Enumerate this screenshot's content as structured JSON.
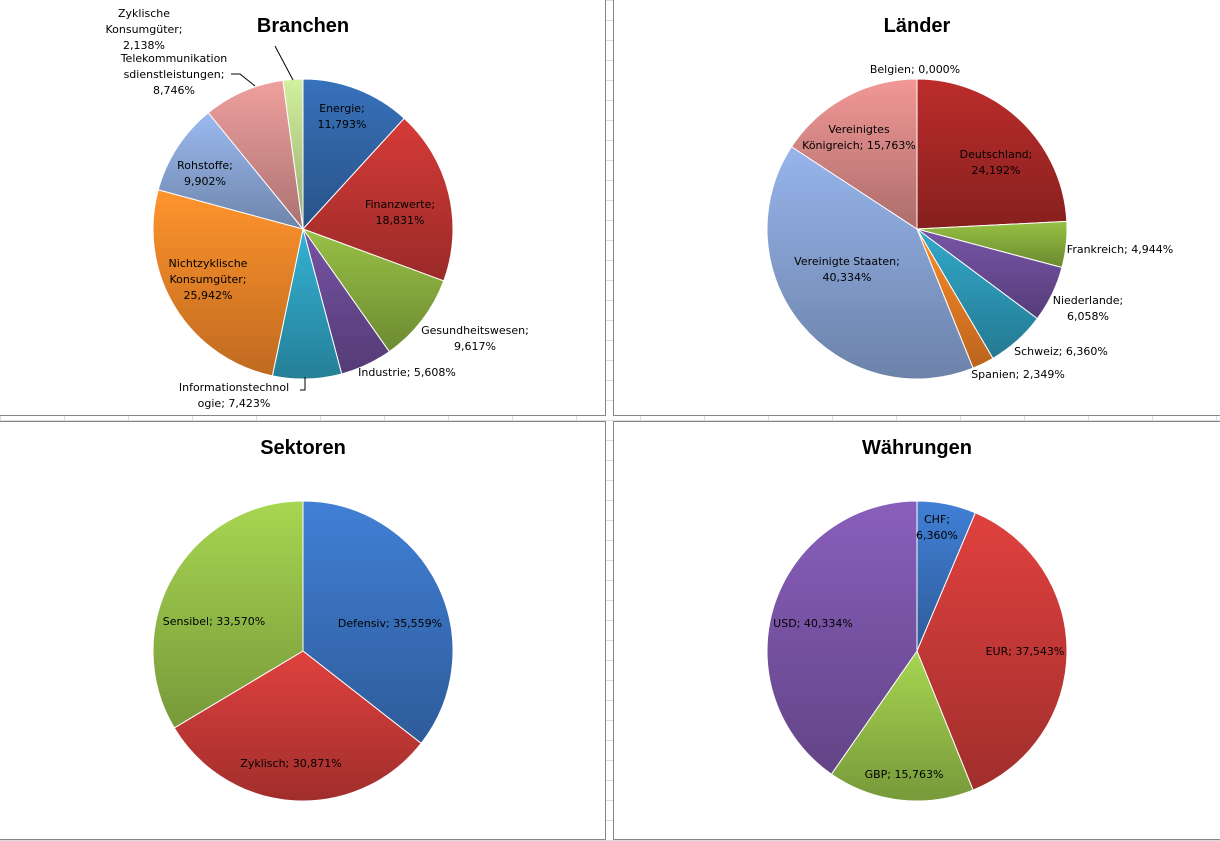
{
  "chart_data": [
    {
      "type": "pie",
      "title": "Branchen",
      "slices": [
        {
          "label": "Energie",
          "value": 11.793,
          "text": [
            "Energie;",
            "11,793%"
          ],
          "color": "#3266a8"
        },
        {
          "label": "Finanzwerte",
          "value": 18.831,
          "text": [
            "Finanzwerte;",
            "18,831%"
          ],
          "color": "#bf3532"
        },
        {
          "label": "Gesundheitswesen",
          "value": 9.617,
          "text": [
            "Gesundheitswesen;",
            "9,617%"
          ],
          "color": "#88ac3e"
        },
        {
          "label": "Industrie",
          "value": 5.608,
          "text": [
            "Industrie; 5,608%"
          ],
          "color": "#694a93"
        },
        {
          "label": "Informationstechnologie",
          "value": 7.423,
          "text": [
            "Informationstechnol",
            "ogie; 7,423%"
          ],
          "color": "#2e9fbd"
        },
        {
          "label": "Nichtzyklische Konsumgüter",
          "value": 25.942,
          "text": [
            "Nichtzyklische",
            "Konsumgüter;",
            "25,942%"
          ],
          "color": "#ef8428"
        },
        {
          "label": "Rohstoffe",
          "value": 9.902,
          "text": [
            "Rohstoffe;",
            "9,902%"
          ],
          "color": "#8aa6d6"
        },
        {
          "label": "Telekommunikationsdienstleistungen",
          "value": 8.746,
          "text": [
            "Telekommunikation",
            "sdienstleistungen;",
            "8,746%"
          ],
          "color": "#d58f8d"
        },
        {
          "label": "Zyklische Konsumgüter",
          "value": 2.138,
          "text": [
            "Zyklische",
            "Konsumgüter;",
            "2,138%"
          ],
          "color": "#bcd68e"
        }
      ]
    },
    {
      "type": "pie",
      "title": "Länder",
      "slices": [
        {
          "label": "Deutschland",
          "value": 24.192,
          "text": [
            "Deutschland;",
            "24,192%"
          ],
          "color": "#a82826"
        },
        {
          "label": "Frankreich",
          "value": 4.944,
          "text": [
            "Frankreich; 4,944%"
          ],
          "color": "#86ab3c"
        },
        {
          "label": "Niederlande",
          "value": 6.058,
          "text": [
            "Niederlande;",
            "6,058%"
          ],
          "color": "#6a4c96"
        },
        {
          "label": "Schweiz",
          "value": 6.36,
          "text": [
            "Schweiz; 6,360%"
          ],
          "color": "#2d97b5"
        },
        {
          "label": "Spanien",
          "value": 2.349,
          "text": [
            "Spanien; 2,349%"
          ],
          "color": "#e87d25"
        },
        {
          "label": "Vereinigte Staaten",
          "value": 40.334,
          "text": [
            "Vereinigte Staaten;",
            "40,334%"
          ],
          "color": "#87a2d3"
        },
        {
          "label": "Vereinigtes Königreich",
          "value": 15.763,
          "text": [
            "Vereinigtes",
            "Königreich; 15,763%"
          ],
          "color": "#d78886"
        },
        {
          "label": "Belgien",
          "value": 0.0,
          "text": [
            "Belgien; 0,000%"
          ],
          "color": "#b9cde8"
        }
      ]
    },
    {
      "type": "pie",
      "title": "Sektoren",
      "slices": [
        {
          "label": "Defensiv",
          "value": 35.559,
          "text": [
            "Defensiv; 35,559%"
          ],
          "color": "#3a72bf"
        },
        {
          "label": "Zyklisch",
          "value": 30.871,
          "text": [
            "Zyklisch; 30,871%"
          ],
          "color": "#c83a37"
        },
        {
          "label": "Sensibel",
          "value": 33.57,
          "text": [
            "Sensibel; 33,570%"
          ],
          "color": "#95bf48"
        }
      ]
    },
    {
      "type": "pie",
      "title": "Währungen",
      "slices": [
        {
          "label": "CHF",
          "value": 6.36,
          "text": [
            "CHF;",
            "6,360%"
          ],
          "color": "#3a72bf"
        },
        {
          "label": "EUR",
          "value": 37.543,
          "text": [
            "EUR; 37,543%"
          ],
          "color": "#c83a37"
        },
        {
          "label": "GBP",
          "value": 15.763,
          "text": [
            "GBP; 15,763%"
          ],
          "color": "#95bf48"
        },
        {
          "label": "USD",
          "value": 40.334,
          "text": [
            "USD; 40,334%"
          ],
          "color": "#7a55a8"
        }
      ]
    }
  ]
}
